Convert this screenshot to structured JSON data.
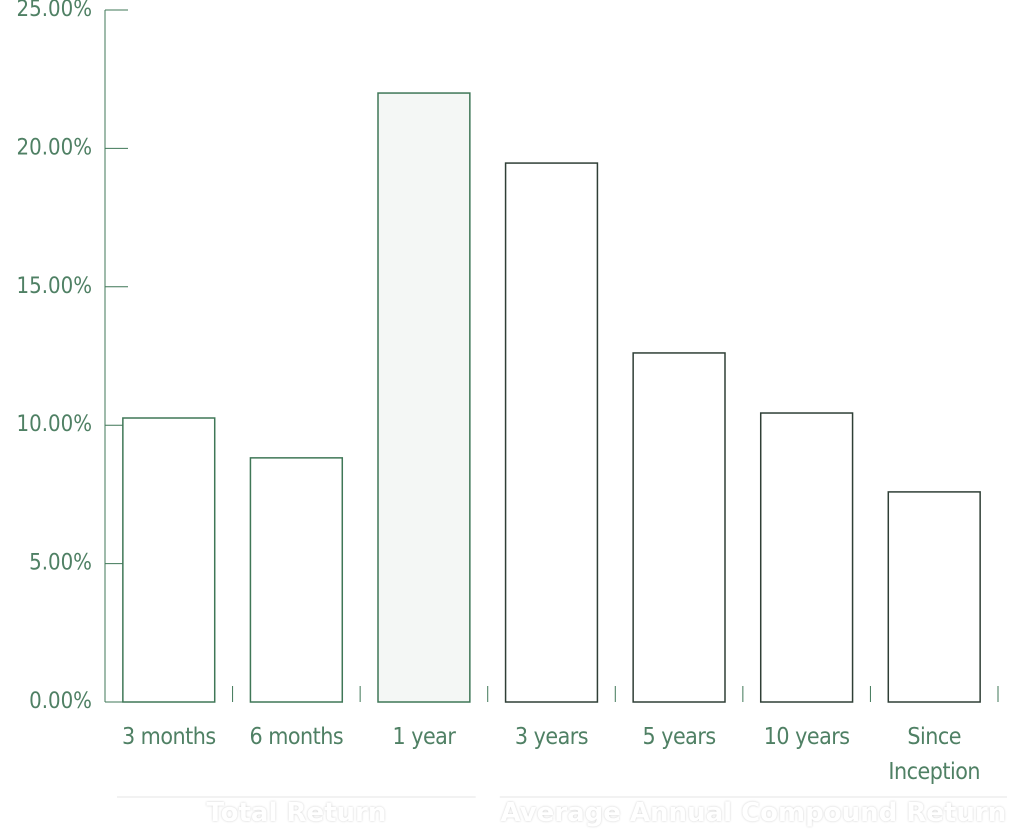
{
  "chart_data": {
    "type": "bar",
    "categories": [
      "3 months",
      "6 months",
      "1 year",
      "3 years",
      "5 years",
      "10 years",
      "Since Inception"
    ],
    "values": [
      10.26,
      8.82,
      22.0,
      19.47,
      12.61,
      10.44,
      7.59
    ],
    "colors": [
      "#3f7757",
      "#3f7757",
      "#3f7757",
      "#2f3f36",
      "#2f3f36",
      "#2f3f36",
      "#2f3f36"
    ],
    "fills": [
      "#ffffff",
      "#ffffff",
      "#f4f7f5",
      "#ffffff",
      "#ffffff",
      "#ffffff",
      "#ffffff"
    ],
    "ylim": [
      0,
      25
    ],
    "yticks": [
      {
        "value": 0,
        "label": "0.00%"
      },
      {
        "value": 5,
        "label": "5.00%"
      },
      {
        "value": 10,
        "label": "10.00%"
      },
      {
        "value": 15,
        "label": "15.00%"
      },
      {
        "value": 20,
        "label": "20.00%"
      },
      {
        "value": 25,
        "label": "25.00%"
      }
    ],
    "groups": [
      {
        "label": "Total Return",
        "start": 0,
        "end": 2
      },
      {
        "label": "Average Annual Compound Return",
        "start": 3,
        "end": 6
      }
    ]
  }
}
